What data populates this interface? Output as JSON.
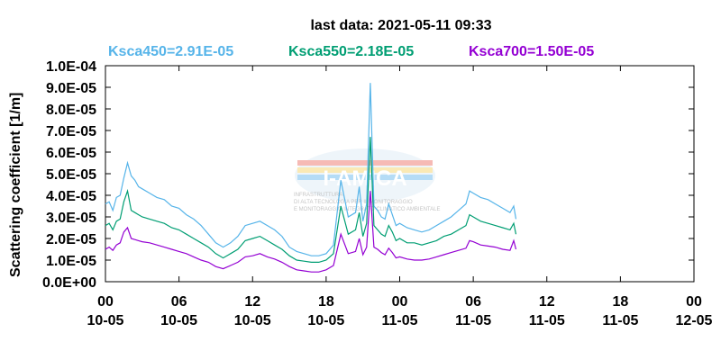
{
  "chart_data": {
    "type": "line",
    "title": "last data: 2021-05-11 09:33",
    "ylabel": "Scattering coefficient [1/m]",
    "xlabel": "",
    "ylim": [
      0,
      0.0001
    ],
    "xlim": [
      0,
      80
    ],
    "y_ticks": [
      "0.0E+00",
      "1.0E-05",
      "2.0E-05",
      "3.0E-05",
      "4.0E-05",
      "5.0E-05",
      "6.0E-05",
      "7.0E-05",
      "8.0E-05",
      "9.0E-05",
      "1.0E-04"
    ],
    "x_ticks": [
      {
        "x": 0,
        "top": "00",
        "bottom": "10-05"
      },
      {
        "x": 10,
        "top": "06",
        "bottom": "10-05"
      },
      {
        "x": 20,
        "top": "12",
        "bottom": "10-05"
      },
      {
        "x": 30,
        "top": "18",
        "bottom": "10-05"
      },
      {
        "x": 40,
        "top": "00",
        "bottom": "11-05"
      },
      {
        "x": 50,
        "top": "06",
        "bottom": "11-05"
      },
      {
        "x": 60,
        "top": "12",
        "bottom": "11-05"
      },
      {
        "x": 70,
        "top": "18",
        "bottom": "11-05"
      },
      {
        "x": 80,
        "top": "00",
        "bottom": "12-05"
      }
    ],
    "grid": false,
    "legend_placement": "top",
    "series": [
      {
        "name": "Ksca450=2.91E-05",
        "color": "#56b4e9",
        "x": [
          0,
          0.5,
          1,
          1.5,
          2,
          2.5,
          3,
          3.5,
          4,
          4.5,
          5,
          6,
          7,
          8,
          9,
          10,
          11,
          12,
          13,
          14,
          15,
          16,
          17,
          18,
          19,
          20,
          21,
          22,
          23,
          24,
          25,
          26,
          27,
          28,
          29,
          30,
          31,
          32,
          33,
          34,
          34.5,
          35,
          35.5,
          36,
          36.5,
          37,
          37.5,
          38,
          38.5,
          39,
          39.5,
          40,
          41,
          42,
          43,
          44,
          45,
          46,
          47,
          48,
          49,
          49.5,
          50,
          51,
          52,
          53,
          54,
          55,
          55.5,
          55.8
        ],
        "y": [
          3.6e-05,
          3.7e-05,
          3.3e-05,
          3.9e-05,
          4e-05,
          4.8e-05,
          5.5e-05,
          4.9e-05,
          4.7e-05,
          4.4e-05,
          4.3e-05,
          4.1e-05,
          3.9e-05,
          3.8e-05,
          3.5e-05,
          3.4e-05,
          3.1e-05,
          2.9e-05,
          2.6e-05,
          2.2e-05,
          1.8e-05,
          1.6e-05,
          1.8e-05,
          2.1e-05,
          2.6e-05,
          2.7e-05,
          2.8e-05,
          2.6e-05,
          2.4e-05,
          2.1e-05,
          1.6e-05,
          1.4e-05,
          1.3e-05,
          1.2e-05,
          1.2e-05,
          1.3e-05,
          1.7e-05,
          4.7e-05,
          3e-05,
          3.2e-05,
          4.4e-05,
          2.8e-05,
          3.6e-05,
          9.2e-05,
          3.5e-05,
          3.3e-05,
          3e-05,
          2.9e-05,
          3.6e-05,
          3.1e-05,
          2.6e-05,
          2.7e-05,
          2.5e-05,
          2.4e-05,
          2.3e-05,
          2.4e-05,
          2.6e-05,
          2.8e-05,
          3e-05,
          3.3e-05,
          3.6e-05,
          4.2e-05,
          4.1e-05,
          3.9e-05,
          3.8e-05,
          3.6e-05,
          3.4e-05,
          3.2e-05,
          3.5e-05,
          2.9e-05
        ]
      },
      {
        "name": "Ksca550=2.18E-05",
        "color": "#009e73",
        "x": [
          0,
          0.5,
          1,
          1.5,
          2,
          2.5,
          3,
          3.5,
          4,
          4.5,
          5,
          6,
          7,
          8,
          9,
          10,
          11,
          12,
          13,
          14,
          15,
          16,
          17,
          18,
          19,
          20,
          21,
          22,
          23,
          24,
          25,
          26,
          27,
          28,
          29,
          30,
          31,
          32,
          33,
          34,
          34.5,
          35,
          35.5,
          36,
          36.5,
          37,
          37.5,
          38,
          38.5,
          39,
          39.5,
          40,
          41,
          42,
          43,
          44,
          45,
          46,
          47,
          48,
          49,
          49.5,
          50,
          51,
          52,
          53,
          54,
          55,
          55.5,
          55.8
        ],
        "y": [
          2.6e-05,
          2.7e-05,
          2.4e-05,
          2.8e-05,
          2.9e-05,
          3.7e-05,
          4.2e-05,
          3.3e-05,
          3.2e-05,
          3.1e-05,
          3e-05,
          2.9e-05,
          2.8e-05,
          2.7e-05,
          2.5e-05,
          2.4e-05,
          2.2e-05,
          2e-05,
          1.8e-05,
          1.6e-05,
          1.3e-05,
          1.1e-05,
          1.3e-05,
          1.5e-05,
          1.9e-05,
          2e-05,
          2.1e-05,
          1.9e-05,
          1.7e-05,
          1.5e-05,
          1.2e-05,
          1e-05,
          9.5e-06,
          9e-06,
          9e-06,
          1e-05,
          1.3e-05,
          3.5e-05,
          2.2e-05,
          2.4e-05,
          3.2e-05,
          2.1e-05,
          2.7e-05,
          6.7e-05,
          2.6e-05,
          2.4e-05,
          2.2e-05,
          2.1e-05,
          2.6e-05,
          2.3e-05,
          1.9e-05,
          2e-05,
          1.8e-05,
          1.8e-05,
          1.7e-05,
          1.8e-05,
          1.9e-05,
          2.1e-05,
          2.2e-05,
          2.4e-05,
          2.6e-05,
          3.1e-05,
          3e-05,
          2.8e-05,
          2.7e-05,
          2.6e-05,
          2.5e-05,
          2.4e-05,
          2.7e-05,
          2.2e-05
        ]
      },
      {
        "name": "Ksca700=1.50E-05",
        "color": "#9400d3",
        "x": [
          0,
          0.5,
          1,
          1.5,
          2,
          2.5,
          3,
          3.5,
          4,
          4.5,
          5,
          6,
          7,
          8,
          9,
          10,
          11,
          12,
          13,
          14,
          15,
          16,
          17,
          18,
          19,
          20,
          21,
          22,
          23,
          24,
          25,
          26,
          27,
          28,
          29,
          30,
          31,
          32,
          33,
          34,
          34.5,
          35,
          35.5,
          36,
          36.5,
          37,
          37.5,
          38,
          38.5,
          39,
          39.5,
          40,
          41,
          42,
          43,
          44,
          45,
          46,
          47,
          48,
          49,
          49.5,
          50,
          51,
          52,
          53,
          54,
          55,
          55.5,
          55.8
        ],
        "y": [
          1.5e-05,
          1.6e-05,
          1.45e-05,
          1.7e-05,
          1.8e-05,
          2.3e-05,
          2.5e-05,
          2e-05,
          1.95e-05,
          1.9e-05,
          1.85e-05,
          1.8e-05,
          1.7e-05,
          1.6e-05,
          1.5e-05,
          1.4e-05,
          1.3e-05,
          1.15e-05,
          1e-05,
          9e-06,
          7e-06,
          6e-06,
          7.5e-06,
          9e-06,
          1.15e-05,
          1.2e-05,
          1.3e-05,
          1.15e-05,
          1.05e-05,
          9e-06,
          7e-06,
          5.5e-06,
          5e-06,
          4.5e-06,
          4.5e-06,
          5.5e-06,
          7.5e-06,
          2.2e-05,
          1.3e-05,
          1.4e-05,
          2e-05,
          1.25e-05,
          1.6e-05,
          4.2e-05,
          1.6e-05,
          1.5e-05,
          1.35e-05,
          1.25e-05,
          1.55e-05,
          1.35e-05,
          1.1e-05,
          1.15e-05,
          1.05e-05,
          1e-05,
          1e-05,
          1.05e-05,
          1.15e-05,
          1.25e-05,
          1.35e-05,
          1.45e-05,
          1.55e-05,
          1.9e-05,
          1.85e-05,
          1.7e-05,
          1.65e-05,
          1.6e-05,
          1.5e-05,
          1.45e-05,
          1.9e-05,
          1.5e-05
        ]
      }
    ]
  },
  "watermark": {
    "name": "I-AMICA",
    "lines": [
      "INFRASTRUTTURA",
      "DI ALTA TECNOLOGIA PER IL MONITORAGGIO",
      "E MONITORAGGIO INTEGRATO CLIMATICO AMBIENTALE"
    ],
    "colors": {
      "bar1": "#e63b2e",
      "bar2": "#f2c12e",
      "bar3": "#2e9ee6"
    }
  }
}
